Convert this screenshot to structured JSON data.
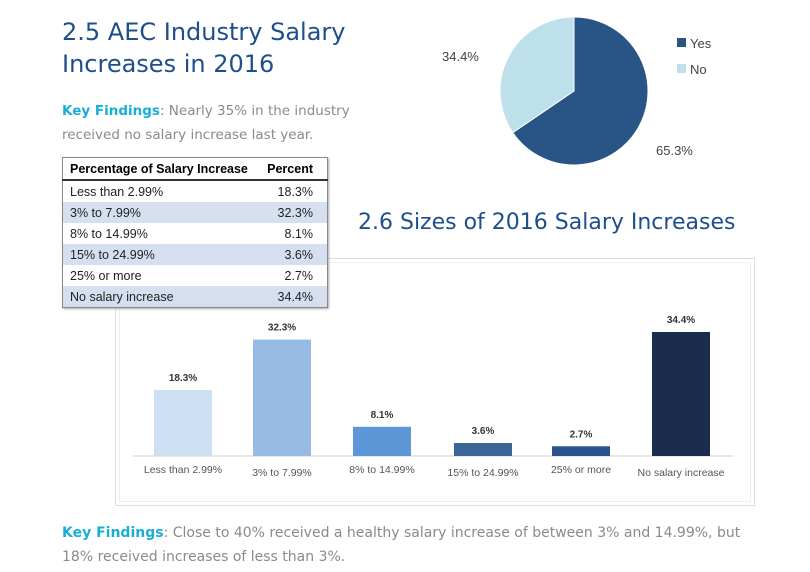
{
  "header": {
    "title_line1": "2.5 AEC Industry Salary",
    "title_line2": "Increases in 2016"
  },
  "key_findings_1": {
    "label": "Key Findings",
    "text": ": Nearly 35% in the industry received no salary increase last year."
  },
  "table": {
    "headers": [
      "Percentage of Salary Increase",
      "Percent"
    ],
    "rows": [
      [
        "Less than 2.99%",
        "18.3%"
      ],
      [
        "3% to 7.99%",
        "32.3%"
      ],
      [
        "8% to 14.99%",
        "8.1%"
      ],
      [
        "15% to 24.99%",
        "3.6%"
      ],
      [
        "25% or more",
        "2.7%"
      ],
      [
        "No salary increase",
        "34.4%"
      ]
    ]
  },
  "chart_data": [
    {
      "type": "pie",
      "slices": [
        {
          "label": "Yes",
          "value": 65.3,
          "data_label": "65.3%",
          "color": "#285586"
        },
        {
          "label": "No",
          "value": 34.4,
          "data_label": "34.4%",
          "color": "#bde0ea"
        }
      ],
      "legend": "right"
    },
    {
      "type": "bar",
      "title": "2.6 Sizes of 2016 Salary Increases",
      "categories": [
        "Less than 2.99%",
        "3% to 7.99%",
        "8% to 14.99%",
        "15% to 24.99%",
        "25% or more",
        "No salary increase"
      ],
      "values": [
        18.3,
        32.3,
        8.1,
        3.6,
        2.7,
        34.4
      ],
      "data_labels": [
        "18.3%",
        "32.3%",
        "8.1%",
        "3.6%",
        "2.7%",
        "34.4%"
      ],
      "colors": [
        "#cddff3",
        "#97bbe4",
        "#5e97d8",
        "#3b6597",
        "#2a5490",
        "#1a2d4c"
      ],
      "grid": false
    }
  ],
  "key_findings_2": {
    "label": "Key Findings",
    "text": ": Close to 40% received a healthy salary increase of between 3% and 14.99%, but 18% received increases of less than 3%."
  }
}
